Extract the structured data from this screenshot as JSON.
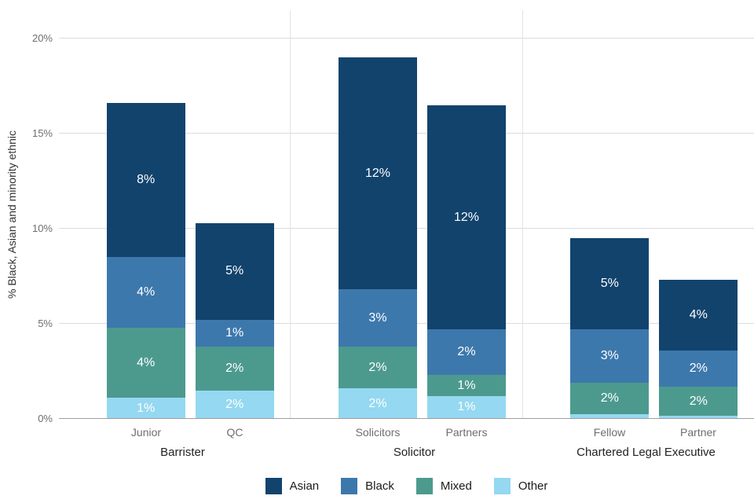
{
  "chart_data": {
    "type": "bar",
    "stacked": true,
    "title": "",
    "ylabel": "% Black, Asian and minority ethnic",
    "xlabel": "",
    "ylim": [
      0,
      20
    ],
    "yticks": [
      "0%",
      "5%",
      "10%",
      "15%",
      "20%"
    ],
    "ytick_values": [
      0,
      5,
      10,
      15,
      20
    ],
    "grid": "horizontal",
    "legend_position": "bottom",
    "legend": [
      {
        "name": "Asian",
        "color": "#12436d"
      },
      {
        "name": "Black",
        "color": "#3d78ad"
      },
      {
        "name": "Mixed",
        "color": "#4c9a8e"
      },
      {
        "name": "Other",
        "color": "#95d8f1"
      }
    ],
    "groups": [
      {
        "label": "Barrister",
        "bars": [
          {
            "label": "Junior",
            "total": 16.6,
            "segments": [
              {
                "series": "Other",
                "value": 1.1,
                "label": "1%"
              },
              {
                "series": "Mixed",
                "value": 3.7,
                "label": "4%"
              },
              {
                "series": "Black",
                "value": 3.7,
                "label": "4%"
              },
              {
                "series": "Asian",
                "value": 8.1,
                "label": "8%"
              }
            ]
          },
          {
            "label": "QC",
            "total": 10.3,
            "segments": [
              {
                "series": "Other",
                "value": 1.5,
                "label": "2%"
              },
              {
                "series": "Mixed",
                "value": 2.3,
                "label": "2%"
              },
              {
                "series": "Black",
                "value": 1.4,
                "label": "1%"
              },
              {
                "series": "Asian",
                "value": 5.1,
                "label": "5%"
              }
            ]
          }
        ]
      },
      {
        "label": "Solicitor",
        "bars": [
          {
            "label": "Solicitors",
            "total": 19.0,
            "segments": [
              {
                "series": "Other",
                "value": 1.6,
                "label": "2%"
              },
              {
                "series": "Mixed",
                "value": 2.2,
                "label": "2%"
              },
              {
                "series": "Black",
                "value": 3.0,
                "label": "3%"
              },
              {
                "series": "Asian",
                "value": 12.2,
                "label": "12%"
              }
            ]
          },
          {
            "label": "Partners",
            "total": 16.5,
            "segments": [
              {
                "series": "Other",
                "value": 1.2,
                "label": "1%"
              },
              {
                "series": "Mixed",
                "value": 1.1,
                "label": "1%"
              },
              {
                "series": "Black",
                "value": 2.4,
                "label": "2%"
              },
              {
                "series": "Asian",
                "value": 11.8,
                "label": "12%"
              }
            ]
          }
        ]
      },
      {
        "label": "Chartered Legal Executive",
        "bars": [
          {
            "label": "Fellow",
            "total": 9.5,
            "segments": [
              {
                "series": "Other",
                "value": 0.25,
                "label": ""
              },
              {
                "series": "Mixed",
                "value": 1.65,
                "label": "2%"
              },
              {
                "series": "Black",
                "value": 2.8,
                "label": "3%"
              },
              {
                "series": "Asian",
                "value": 4.8,
                "label": "5%"
              }
            ]
          },
          {
            "label": "Partner",
            "total": 7.3,
            "segments": [
              {
                "series": "Other",
                "value": 0.15,
                "label": ""
              },
              {
                "series": "Mixed",
                "value": 1.55,
                "label": "2%"
              },
              {
                "series": "Black",
                "value": 1.9,
                "label": "2%"
              },
              {
                "series": "Asian",
                "value": 3.7,
                "label": "4%"
              }
            ]
          }
        ]
      }
    ]
  }
}
